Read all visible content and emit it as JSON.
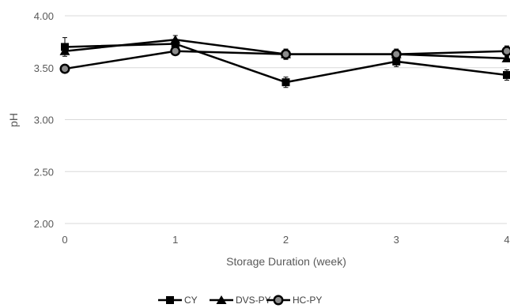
{
  "chart_data": {
    "type": "line",
    "title": "",
    "xlabel": "Storage Duration (week)",
    "ylabel": "pH",
    "x": [
      0,
      1,
      2,
      3,
      4
    ],
    "x_tick_labels": [
      "0",
      "1",
      "2",
      "3",
      "4"
    ],
    "y_tick_labels": [
      "2.00",
      "2.50",
      "3.00",
      "3.50",
      "4.00"
    ],
    "ylim": [
      2.0,
      4.0
    ],
    "xlim": [
      0,
      4
    ],
    "grid": "horizontal",
    "legend_position": "bottom",
    "series": [
      {
        "name": "CY",
        "marker": "square",
        "values": [
          3.7,
          3.73,
          3.36,
          3.56,
          3.43
        ],
        "errors": [
          0.09,
          0.04,
          0.05,
          0.05,
          0.05
        ]
      },
      {
        "name": "DVS-PY",
        "marker": "triangle",
        "values": [
          3.66,
          3.77,
          3.63,
          3.63,
          3.59
        ],
        "errors": [
          0.03,
          0.04,
          0.03,
          0.03,
          0.03
        ]
      },
      {
        "name": "HC-PY",
        "marker": "circle",
        "values": [
          3.49,
          3.66,
          3.63,
          3.63,
          3.66
        ],
        "errors": [
          0.04,
          0.04,
          0.05,
          0.05,
          0.05
        ]
      }
    ]
  }
}
